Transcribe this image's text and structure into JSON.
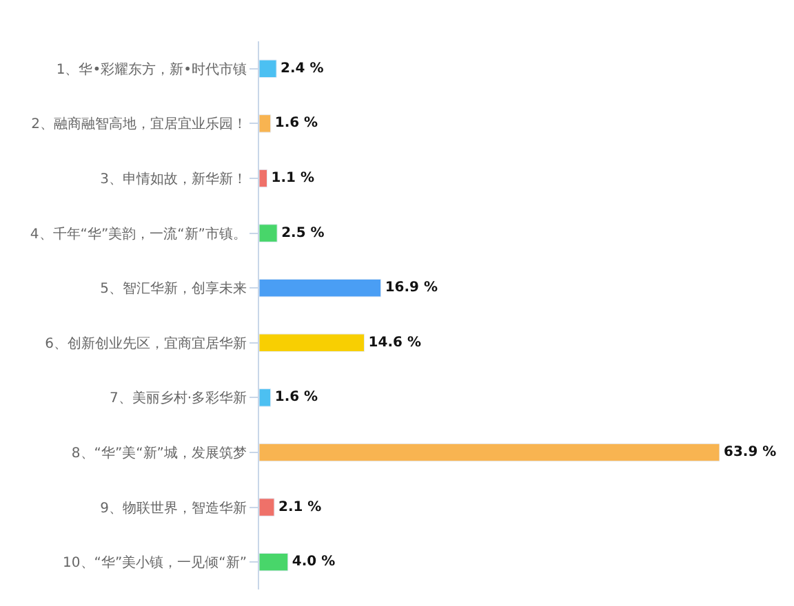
{
  "chart_data": {
    "type": "bar",
    "orientation": "horizontal",
    "categories": [
      "1、华•彩耀东方，新•时代市镇",
      "2、融商融智高地，宜居宜业乐园！",
      "3、申情如故，新华新！",
      "4、千年“华”美韵，一流“新”市镇。",
      "5、智汇华新，创享未来",
      "6、创新创业先区，宜商宜居华新",
      "7、美丽乡村·多彩华新",
      "8、“华”美“新”城，发展筑梦",
      "9、物联世界，智造华新",
      "10、“华”美小镇，一见倾“新”"
    ],
    "values": [
      2.4,
      1.6,
      1.1,
      2.5,
      16.9,
      14.6,
      1.6,
      63.9,
      2.1,
      4.0
    ],
    "colors": [
      "#4cc0f2",
      "#f8b451",
      "#ef7169",
      "#48d66a",
      "#4a9ef4",
      "#f8cf02",
      "#4cc0f2",
      "#f8b451",
      "#ef7169",
      "#48d66a"
    ],
    "value_labels": [
      "2.4 %",
      "1.6 %",
      "1.1 %",
      "2.5 %",
      "16.9 %",
      "14.6 %",
      "1.6 %",
      "63.9 %",
      "2.1 %",
      "4.0 %"
    ],
    "tick_labels": "y"
  }
}
